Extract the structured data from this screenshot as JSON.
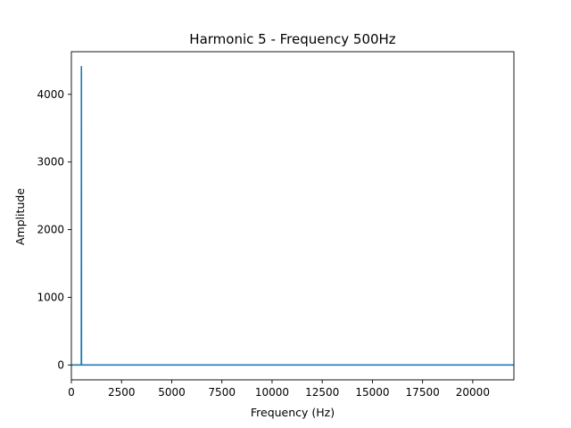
{
  "chart_data": {
    "type": "line",
    "title": "Harmonic 5 - Frequency 500Hz",
    "xlabel": "Frequency (Hz)",
    "ylabel": "Amplitude",
    "xlim": [
      0,
      22050
    ],
    "ylim": [
      -220,
      4630
    ],
    "xticks": [
      0,
      2500,
      5000,
      7500,
      10000,
      12500,
      15000,
      17500,
      20000
    ],
    "yticks": [
      0,
      1000,
      2000,
      3000,
      4000
    ],
    "grid": false,
    "line_color": "#1f77b4",
    "series": [
      {
        "x": [
          0,
          490,
          495,
          500,
          505,
          510,
          22050
        ],
        "y": [
          0,
          0,
          0,
          4410,
          0,
          0,
          0
        ]
      }
    ]
  }
}
